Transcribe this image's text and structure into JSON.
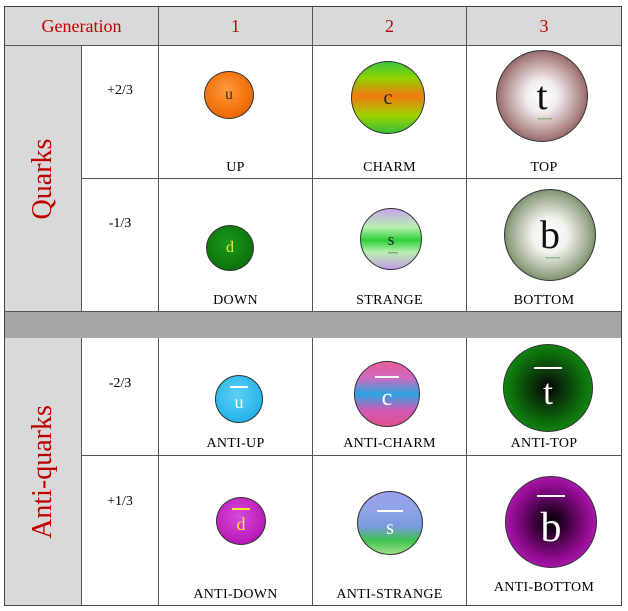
{
  "header": {
    "generation_label": "Generation",
    "gen1": "1",
    "gen2": "2",
    "gen3": "3"
  },
  "groups": {
    "quarks": "Quarks",
    "antiquarks": "Anti-quarks"
  },
  "charges": {
    "up_row": "+2/3",
    "down_row": "-1/3",
    "antiup_row": "-2/3",
    "antidown_row": "+1/3"
  },
  "particles": {
    "up": {
      "symbol": "u",
      "label": "UP"
    },
    "charm": {
      "symbol": "c",
      "label": "CHARM"
    },
    "top": {
      "symbol": "t",
      "label": "TOP"
    },
    "down": {
      "symbol": "d",
      "label": "DOWN"
    },
    "strange": {
      "symbol": "s",
      "label": "STRANGE"
    },
    "bottom": {
      "symbol": "b",
      "label": "BOTTOM"
    },
    "antiup": {
      "symbol": "u",
      "label": "ANTI-UP"
    },
    "anticharm": {
      "symbol": "c",
      "label": "ANTI-CHARM"
    },
    "antitop": {
      "symbol": "t",
      "label": "ANTI-TOP"
    },
    "antidown": {
      "symbol": "d",
      "label": "ANTI-DOWN"
    },
    "antistrange": {
      "symbol": "s",
      "label": "ANTI-STRANGE"
    },
    "antibottom": {
      "symbol": "b",
      "label": "ANTI-BOTTOM"
    }
  },
  "colors": {
    "header_text": "#c00000",
    "header_bg": "#d9d9d9",
    "separator": "#a6a6a6"
  }
}
